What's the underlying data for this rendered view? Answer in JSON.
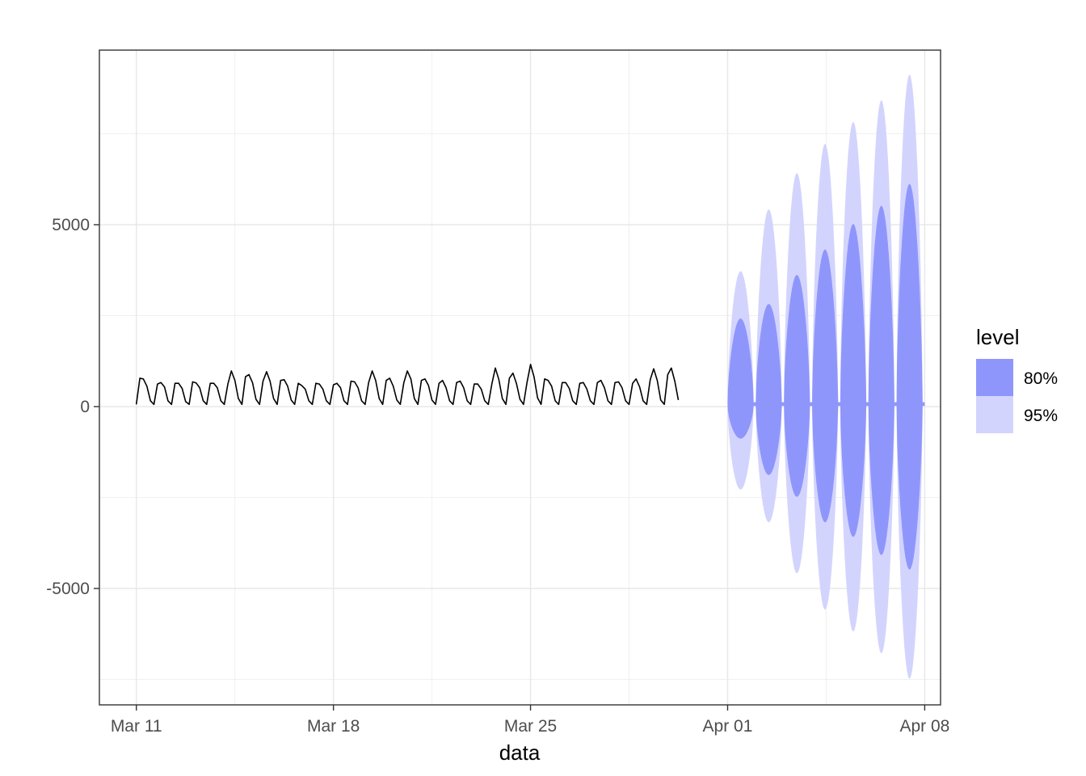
{
  "chart_data": {
    "type": "line",
    "title": "",
    "xlabel": "data",
    "ylabel": "",
    "x_ticks": [
      {
        "label": "Mar 11",
        "day": 0
      },
      {
        "label": "Mar 18",
        "day": 7
      },
      {
        "label": "Mar 25",
        "day": 14
      },
      {
        "label": "Apr 01",
        "day": 21
      },
      {
        "label": "Apr 08",
        "day": 28
      }
    ],
    "y_ticks": [
      {
        "label": "-5000",
        "value": -5000
      },
      {
        "label": "0",
        "value": 0
      },
      {
        "label": "5000",
        "value": 5000
      }
    ],
    "xlim": [
      "Mar 09 16:30",
      "Apr 08 13:30"
    ],
    "ylim": [
      -8200,
      9800
    ],
    "grid": true,
    "legend": {
      "title": "level",
      "position": "right",
      "entries": [
        {
          "label": "80%",
          "color": "#8f96fb"
        },
        {
          "label": "95%",
          "color": "#d3d4fd"
        }
      ]
    },
    "series": [
      {
        "color": "#000000",
        "x_start": "Mar 11",
        "step_hours": 3,
        "values": [
          60,
          780,
          760,
          560,
          160,
          60,
          620,
          660,
          540,
          160,
          60,
          640,
          640,
          500,
          140,
          60,
          680,
          650,
          520,
          160,
          60,
          640,
          640,
          520,
          160,
          60,
          620,
          980,
          720,
          220,
          60,
          820,
          880,
          660,
          200,
          60,
          700,
          960,
          700,
          220,
          60,
          720,
          740,
          560,
          180,
          60,
          640,
          580,
          480,
          160,
          60,
          640,
          620,
          480,
          160,
          60,
          600,
          640,
          520,
          160,
          60,
          700,
          680,
          520,
          160,
          60,
          660,
          980,
          720,
          220,
          60,
          720,
          780,
          560,
          180,
          60,
          660,
          980,
          760,
          220,
          60,
          720,
          760,
          580,
          180,
          60,
          640,
          720,
          520,
          160,
          60,
          660,
          700,
          520,
          160,
          60,
          620,
          620,
          480,
          160,
          60,
          620,
          1060,
          740,
          220,
          60,
          780,
          920,
          640,
          200,
          60,
          660,
          1160,
          820,
          240,
          60,
          760,
          720,
          560,
          160,
          60,
          660,
          660,
          500,
          160,
          60,
          640,
          660,
          480,
          160,
          60,
          660,
          720,
          520,
          160,
          60,
          660,
          680,
          520,
          160,
          60,
          640,
          760,
          540,
          160,
          60,
          740,
          1040,
          720,
          180,
          60,
          880,
          1060,
          700,
          180
        ]
      }
    ],
    "forecast": {
      "start": "Apr 01",
      "end": "Apr 08",
      "level_80": [
        {
          "low": -900,
          "high": 2300
        },
        {
          "low": -1900,
          "high": 2700
        },
        {
          "low": -2500,
          "high": 3500
        },
        {
          "low": -3200,
          "high": 4200
        },
        {
          "low": -3600,
          "high": 4900
        },
        {
          "low": -4100,
          "high": 5400
        },
        {
          "low": -4500,
          "high": 6000
        }
      ],
      "level_95": [
        {
          "low": -2300,
          "high": 3600
        },
        {
          "low": -3200,
          "high": 5300
        },
        {
          "low": -4600,
          "high": 6300
        },
        {
          "low": -5600,
          "high": 7100
        },
        {
          "low": -6200,
          "high": 7700
        },
        {
          "low": -6800,
          "high": 8300
        },
        {
          "low": -7500,
          "high": 9000
        }
      ]
    }
  }
}
